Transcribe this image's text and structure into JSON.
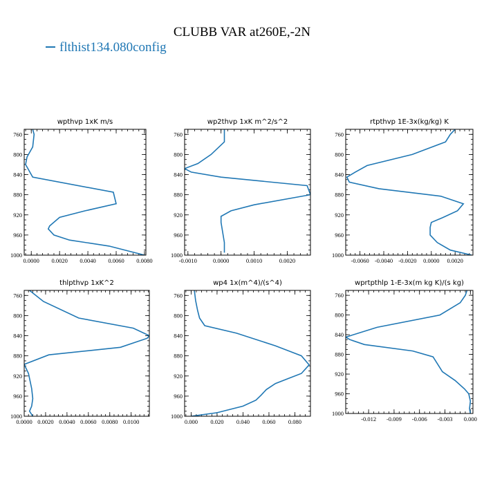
{
  "figure": {
    "title": "CLUBB VAR at260E,-2N",
    "legend": "flthist134.080config",
    "series_color": "#1f77b4"
  },
  "chart_data": [
    {
      "type": "line",
      "title": "wpthvp   1xK m/s",
      "xlim": [
        -0.0005,
        0.0081
      ],
      "ylim": [
        1000,
        750
      ],
      "xticks": [
        0.0,
        0.002,
        0.004,
        0.006,
        0.008
      ],
      "xtick_labels": [
        "0.0000",
        "0.0020",
        "0.0040",
        "0.0060",
        "0.0080"
      ],
      "yticks": [
        760,
        800,
        840,
        880,
        920,
        960,
        1000
      ],
      "ytick_labels": [
        "760",
        "800",
        "840",
        "880",
        "920",
        "960",
        "1000"
      ],
      "x": [
        0.0001,
        0.0002,
        0.0001,
        -0.0003,
        -0.0004,
        -0.0003,
        0.0001,
        0.0058,
        0.006,
        0.0038,
        0.002,
        0.0013,
        0.0012,
        0.0016,
        0.0027,
        0.0055,
        0.008
      ],
      "y": [
        750,
        760,
        785,
        805,
        820,
        825,
        845,
        875,
        898,
        912,
        925,
        942,
        948,
        960,
        970,
        982,
        1000
      ]
    },
    {
      "type": "line",
      "title": "wp2thvp   1xK m^2/s^2",
      "xlim": [
        -0.0011,
        0.0027
      ],
      "ylim": [
        1000,
        750
      ],
      "xticks": [
        -0.001,
        0.0,
        0.001,
        0.002
      ],
      "xtick_labels": [
        "-0.0010",
        "0.0000",
        "0.0010",
        "0.0020"
      ],
      "yticks": [
        760,
        800,
        840,
        880,
        920,
        960,
        1000
      ],
      "ytick_labels": [
        "760",
        "800",
        "840",
        "880",
        "920",
        "960",
        "1000"
      ],
      "x": [
        0.0001,
        0.0001,
        0.0001,
        -0.0003,
        -0.0007,
        -0.0011,
        -0.0009,
        0.0,
        0.0026,
        0.0027,
        0.001,
        0.0003,
        0.0,
        0.0,
        0.0001,
        0.0001
      ],
      "y": [
        750,
        760,
        775,
        800,
        818,
        828,
        835,
        845,
        862,
        880,
        900,
        912,
        923,
        935,
        975,
        995
      ]
    },
    {
      "type": "line",
      "title": "rtpthvp   1E-3x(kg/kg) K",
      "xlim": [
        -0.0072,
        0.0035
      ],
      "ylim": [
        1000,
        750
      ],
      "xticks": [
        -0.006,
        -0.004,
        -0.002,
        0.0,
        0.002
      ],
      "xtick_labels": [
        "-0.0060",
        "-0.0040",
        "-0.0020",
        "0.0000",
        "0.0020"
      ],
      "yticks": [
        760,
        800,
        840,
        880,
        920,
        960,
        1000
      ],
      "ytick_labels": [
        "760",
        "800",
        "840",
        "880",
        "920",
        "960",
        "1000"
      ],
      "x": [
        0.002,
        0.0016,
        0.0012,
        -0.0016,
        -0.0054,
        -0.0064,
        -0.0071,
        -0.0069,
        -0.0044,
        0.0008,
        0.0027,
        0.0022,
        0.001,
        0.0,
        -0.0001,
        -0.0001,
        0.0005,
        0.0016,
        0.0034
      ],
      "y": [
        750,
        760,
        775,
        800,
        822,
        835,
        845,
        855,
        868,
        883,
        898,
        912,
        925,
        935,
        945,
        960,
        975,
        990,
        1000
      ]
    },
    {
      "type": "line",
      "title": "thlpthvp   1xK^2",
      "xlim": [
        0.0,
        0.0117
      ],
      "ylim": [
        1000,
        750
      ],
      "xticks": [
        0.0,
        0.002,
        0.004,
        0.006,
        0.008,
        0.01
      ],
      "xtick_labels": [
        "0.0000",
        "0.0020",
        "0.0040",
        "0.0060",
        "0.0080",
        "0.0100"
      ],
      "yticks": [
        760,
        800,
        840,
        880,
        920,
        960,
        1000
      ],
      "ytick_labels": [
        "760",
        "800",
        "840",
        "880",
        "920",
        "960",
        "1000"
      ],
      "x": [
        0.0005,
        0.0018,
        0.0051,
        0.0102,
        0.0117,
        0.0115,
        0.009,
        0.0023,
        0.0,
        0.0004,
        0.0007,
        0.0008,
        0.0007,
        0.0005,
        0.0008
      ],
      "y": [
        750,
        772,
        805,
        825,
        840,
        845,
        863,
        878,
        897,
        915,
        945,
        965,
        980,
        990,
        1000
      ]
    },
    {
      "type": "line",
      "title": "wp4   1x(m^4)/(s^4)",
      "xlim": [
        -0.005,
        0.092
      ],
      "ylim": [
        1000,
        750
      ],
      "xticks": [
        0.0,
        0.02,
        0.04,
        0.06,
        0.08
      ],
      "xtick_labels": [
        "0.000",
        "0.020",
        "0.040",
        "0.060",
        "0.080"
      ],
      "yticks": [
        760,
        800,
        840,
        880,
        920,
        960,
        1000
      ],
      "ytick_labels": [
        "760",
        "800",
        "840",
        "880",
        "920",
        "960",
        "1000"
      ],
      "x": [
        0.0025,
        0.0035,
        0.005,
        0.0065,
        0.0105,
        0.035,
        0.065,
        0.085,
        0.091,
        0.085,
        0.075,
        0.065,
        0.058,
        0.054,
        0.05,
        0.04,
        0.02,
        0.0
      ],
      "y": [
        750,
        770,
        790,
        805,
        820,
        835,
        860,
        880,
        898,
        915,
        925,
        935,
        947,
        958,
        968,
        980,
        993,
        1000
      ]
    },
    {
      "type": "line",
      "title": "wprtpthlp   1-E-3x(m kg K)/(s kg)",
      "xlim": [
        -0.0147,
        0.0003
      ],
      "ylim": [
        1000,
        750
      ],
      "xticks": [
        -0.012,
        -0.009,
        -0.006,
        -0.003,
        0.0
      ],
      "xtick_labels": [
        "-0.012",
        "-0.009",
        "-0.006",
        "-0.003",
        "0.000"
      ],
      "yticks": [
        760,
        800,
        840,
        880,
        920,
        960,
        1000
      ],
      "ytick_labels": [
        "760",
        "800",
        "840",
        "880",
        "920",
        "960",
        "1000"
      ],
      "x": [
        -0.0004,
        -0.0006,
        -0.0012,
        -0.0036,
        -0.011,
        -0.0147,
        -0.0142,
        -0.0125,
        -0.0068,
        -0.0044,
        -0.0033,
        -0.0018,
        -0.0007,
        -0.0002,
        0.0,
        -0.0001,
        0.0
      ],
      "y": [
        750,
        760,
        775,
        800,
        825,
        845,
        850,
        860,
        873,
        885,
        915,
        933,
        950,
        960,
        975,
        990,
        1000
      ]
    }
  ]
}
